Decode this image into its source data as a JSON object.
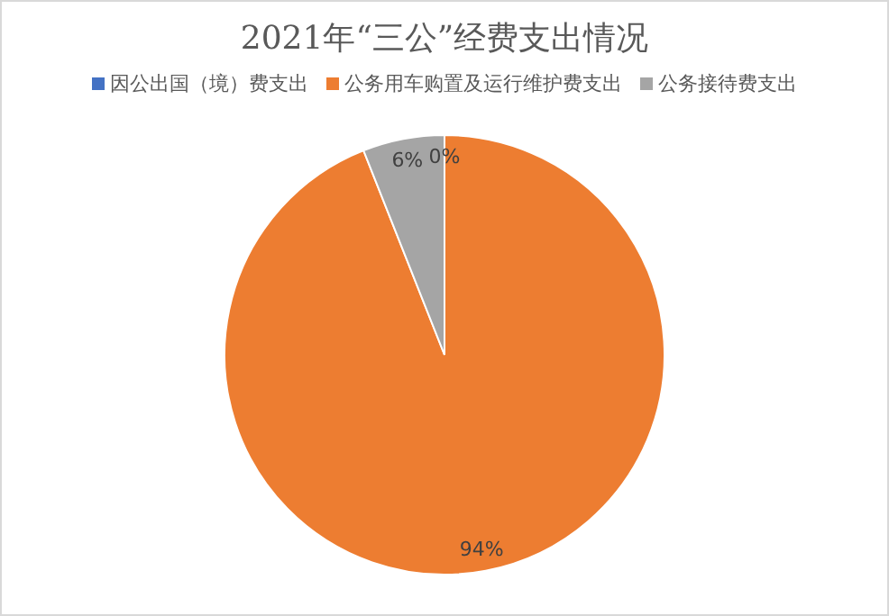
{
  "chart_data": {
    "type": "pie",
    "title": "2021年“三公”经费支出情况",
    "categories": [
      "因公出国（境）费支出",
      "公务用车购置及运行维护费支出",
      "公务接待费支出"
    ],
    "values": [
      0,
      94,
      6
    ],
    "colors": [
      "#4472c4",
      "#ed7d31",
      "#a5a5a5"
    ],
    "value_labels": [
      "0%",
      "94%",
      "6%"
    ],
    "legend": "top"
  }
}
